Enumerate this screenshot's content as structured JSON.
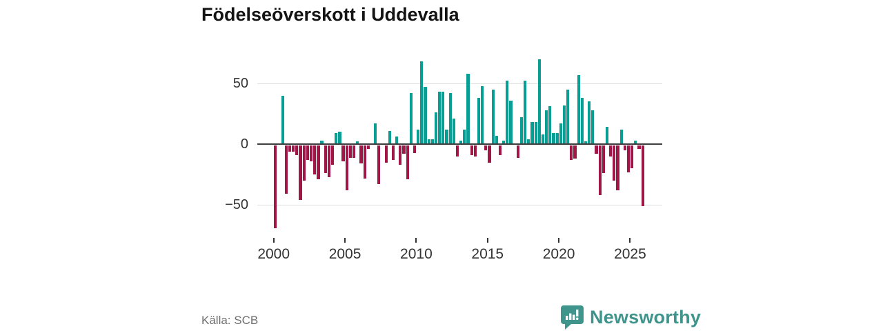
{
  "title": "Födelseöverskott i Uddevalla",
  "source": "Källa: SCB",
  "logo": {
    "text": "Newsworthy",
    "icon": "bar-chart-speech-bubble-icon",
    "color": "#3f948b"
  },
  "chart_data": {
    "type": "bar",
    "title": "Födelseöverskott i Uddevalla",
    "frequency": "quarterly",
    "start": "2000Q1",
    "end": "2025Q4",
    "xlabel": "",
    "ylabel": "",
    "x_tick_labels": [
      "2000",
      "2005",
      "2010",
      "2015",
      "2020",
      "2025"
    ],
    "y_tick_labels": [
      "50",
      "0",
      "−50"
    ],
    "y_tick_values": [
      50,
      0,
      -50
    ],
    "ylim": [
      -75,
      75
    ],
    "grid": "horizontal",
    "legend": "none",
    "colors": {
      "positive": "#089e93",
      "negative": "#a01747"
    },
    "series": [
      {
        "name": "Födelseöverskott",
        "values": [
          -68,
          0,
          40,
          -40,
          -5,
          -5,
          -8,
          -45,
          -29,
          -12,
          -13,
          -24,
          -28,
          3,
          -23,
          -26,
          -16,
          9,
          10,
          -13,
          -37,
          -10,
          -10,
          2,
          -15,
          -27,
          -3,
          0,
          17,
          -32,
          0,
          -14,
          11,
          -12,
          6,
          -16,
          -7,
          -28,
          42,
          -6,
          12,
          68,
          47,
          4,
          4,
          26,
          43,
          43,
          12,
          42,
          21,
          -9,
          3,
          12,
          58,
          -8,
          -9,
          38,
          48,
          -4,
          -14,
          45,
          7,
          -8,
          3,
          52,
          36,
          0,
          -10,
          22,
          52,
          4,
          18,
          18,
          70,
          8,
          28,
          31,
          9,
          9,
          17,
          32,
          45,
          -12,
          -11,
          57,
          38,
          2,
          35,
          28,
          -7,
          -41,
          -23,
          14,
          -9,
          -29,
          -37,
          12,
          -4,
          -22,
          -19,
          3,
          -3,
          -50
        ]
      }
    ]
  }
}
